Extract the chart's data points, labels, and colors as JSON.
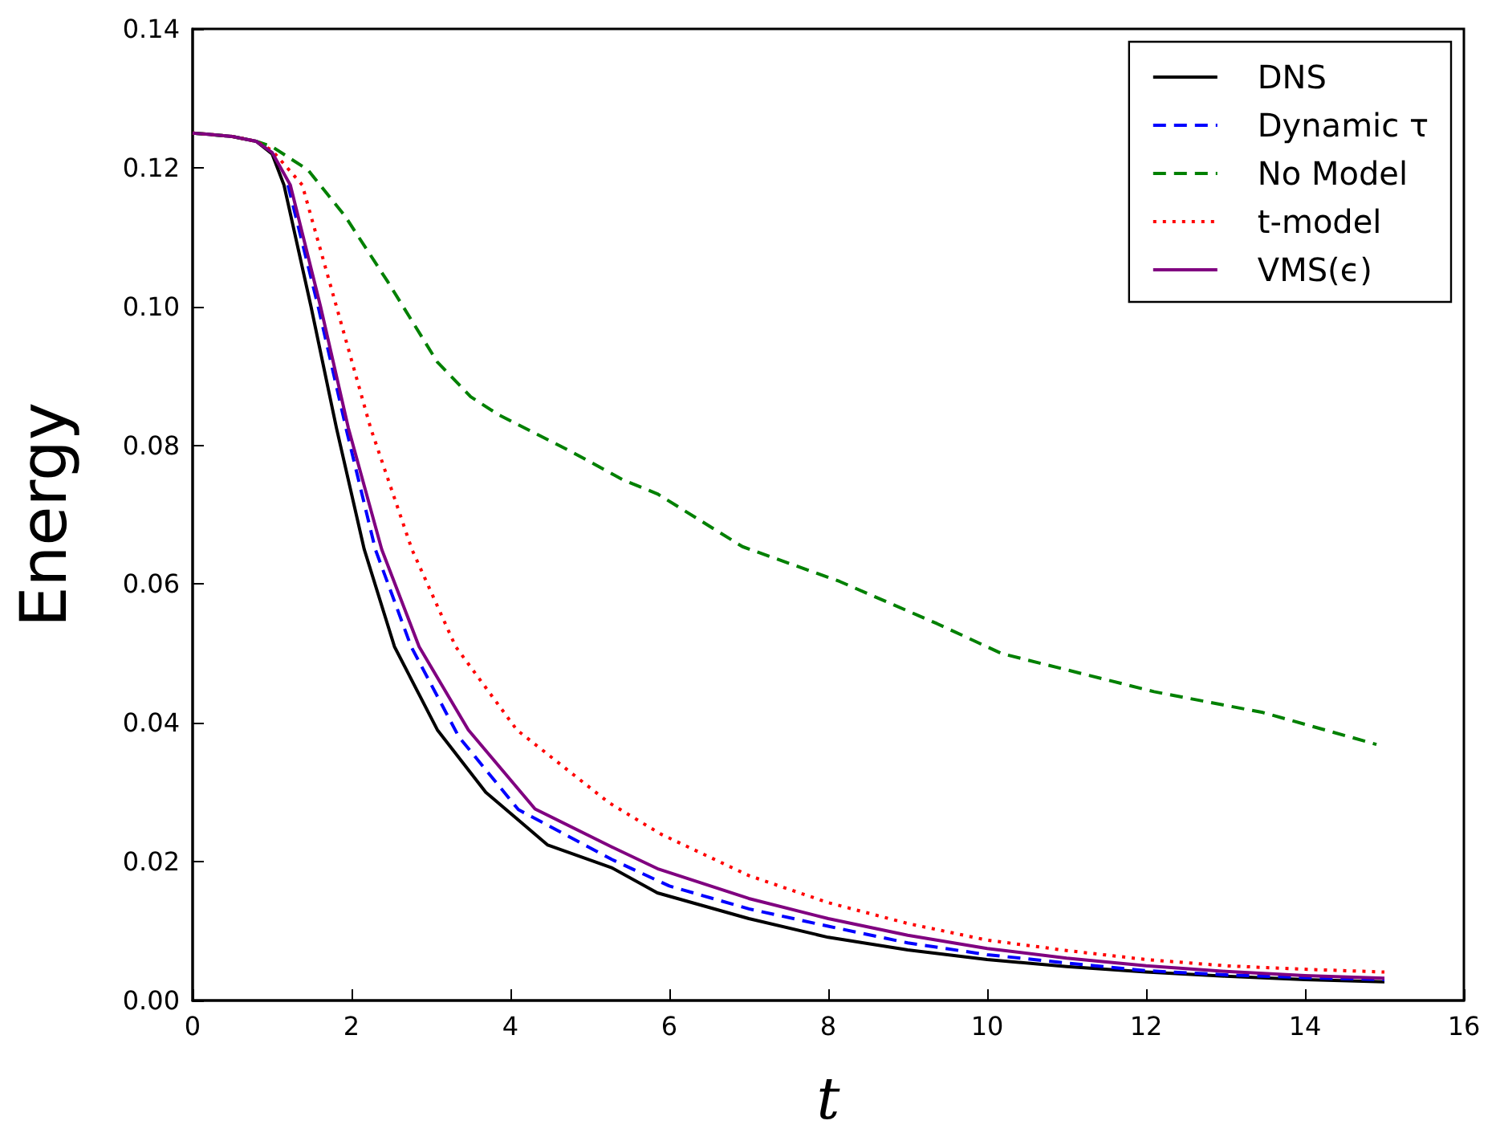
{
  "chart_data": {
    "type": "line",
    "xlabel": "t",
    "ylabel": "Energy",
    "xlim": [
      0,
      16
    ],
    "xticks": [
      0,
      2,
      4,
      6,
      8,
      10,
      12,
      14,
      16
    ],
    "ylim": [
      0,
      0.14
    ],
    "yticks": [
      {
        "value": 0,
        "label": "0.00"
      },
      {
        "value": 0.02,
        "label": "0.02"
      },
      {
        "value": 0.04,
        "label": "0.04"
      },
      {
        "value": 0.06,
        "label": "0.06"
      },
      {
        "value": 0.08,
        "label": "0.08"
      },
      {
        "value": 0.1,
        "label": "0.10"
      },
      {
        "value": 0.12,
        "label": "0.12"
      },
      {
        "value": 0.14,
        "label": "0.14"
      }
    ],
    "grid": false,
    "legend": "top right",
    "marker": "none",
    "series": [
      {
        "name": "DNS",
        "color": "#000000",
        "line_style": "solid",
        "x": [
          0,
          0.5,
          0.8,
          1.0,
          1.15,
          1.49,
          1.81,
          2.16,
          2.54,
          3.08,
          3.69,
          4.47,
          5.28,
          5.85,
          7,
          8,
          9,
          10,
          11,
          12,
          13,
          14,
          15
        ],
        "values": [
          0.125,
          0.1245,
          0.1238,
          0.122,
          0.1175,
          0.1,
          0.0825,
          0.065,
          0.051,
          0.039,
          0.03,
          0.0224,
          0.0191,
          0.0155,
          0.0118,
          0.0091,
          0.0073,
          0.0059,
          0.0049,
          0.0041,
          0.0035,
          0.003,
          0.0027
        ]
      },
      {
        "name": "Dynamic τ",
        "color": "#0000ff",
        "line_style": "dashed",
        "x": [
          1.2,
          1.58,
          1.93,
          2.3,
          2.75,
          3.35,
          4.1,
          5.28,
          6,
          7,
          8,
          9,
          10,
          11,
          12,
          13,
          14,
          15
        ],
        "values": [
          0.1175,
          0.1,
          0.0825,
          0.065,
          0.051,
          0.038,
          0.0275,
          0.0203,
          0.0165,
          0.0132,
          0.0107,
          0.0083,
          0.0066,
          0.0054,
          0.0043,
          0.0037,
          0.0033,
          0.003
        ]
      },
      {
        "name": "No Model",
        "color": "#008000",
        "line_style": "dashed",
        "x": [
          0,
          0.5,
          0.8,
          0.99,
          1.45,
          1.92,
          2.46,
          3.08,
          3.5,
          3.85,
          4.78,
          5.42,
          5.85,
          6.92,
          8.14,
          9.37,
          10.18,
          12.1,
          13.47,
          14.9
        ],
        "values": [
          0.125,
          0.1245,
          0.1238,
          0.1231,
          0.1197,
          0.113,
          0.1035,
          0.092,
          0.087,
          0.0844,
          0.079,
          0.075,
          0.073,
          0.0654,
          0.0604,
          0.0543,
          0.05,
          0.0445,
          0.0415,
          0.0369
        ]
      },
      {
        "name": "t-model",
        "color": "#ff0000",
        "line_style": "dotted",
        "x": [
          0,
          0.5,
          0.8,
          1.0,
          1.38,
          1.81,
          2.24,
          2.76,
          3.31,
          4.08,
          5.24,
          5.89,
          7,
          8,
          9,
          10,
          11,
          12,
          13,
          14,
          15
        ],
        "values": [
          0.125,
          0.1245,
          0.1238,
          0.1225,
          0.1175,
          0.1,
          0.0825,
          0.065,
          0.051,
          0.039,
          0.0285,
          0.024,
          0.018,
          0.0141,
          0.0111,
          0.0087,
          0.0072,
          0.0059,
          0.005,
          0.0045,
          0.0041
        ]
      },
      {
        "name": "VMS(ϵ)",
        "color": "#800080",
        "line_style": "solid",
        "x": [
          0,
          0.5,
          0.8,
          1.0,
          1.23,
          1.61,
          1.96,
          2.38,
          2.85,
          3.47,
          4.31,
          5.28,
          5.85,
          7,
          8,
          9,
          10,
          11,
          12,
          13,
          14,
          15
        ],
        "values": [
          0.125,
          0.1245,
          0.1238,
          0.1222,
          0.1175,
          0.1,
          0.0825,
          0.065,
          0.051,
          0.039,
          0.0276,
          0.0221,
          0.019,
          0.0147,
          0.0118,
          0.0094,
          0.0075,
          0.0061,
          0.005,
          0.0042,
          0.0036,
          0.0032
        ]
      }
    ]
  }
}
